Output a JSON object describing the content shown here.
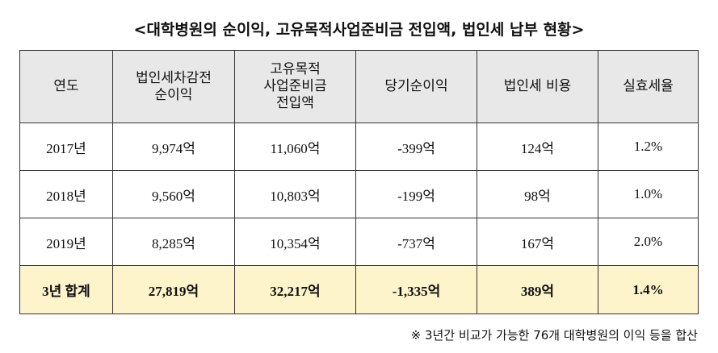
{
  "title": "<대학병원의 순이익, 고유목적사업준비금 전입액, 법인세 납부 현황>",
  "table": {
    "header": [
      "연도",
      "법인세차감전\n순이익",
      "고유목적\n사업준비금\n전입액",
      "당기순이익",
      "법인세 비용",
      "실효세율"
    ],
    "rows": [
      [
        "2017년",
        "9,974억",
        "11,060억",
        "-399억",
        "124억",
        "1.2%"
      ],
      [
        "2018년",
        "9,560억",
        "10,803억",
        "-199억",
        "98억",
        "1.0%"
      ],
      [
        "2019년",
        "8,285억",
        "10,354억",
        "-737억",
        "167억",
        "2.0%"
      ]
    ],
    "total": [
      "3년 합계",
      "27,819억",
      "32,217억",
      "-1,335억",
      "389억",
      "1.4%"
    ]
  },
  "footnote": "※ 3년간 비교가 가능한 76개 대학병원의 이익 등을 합산"
}
